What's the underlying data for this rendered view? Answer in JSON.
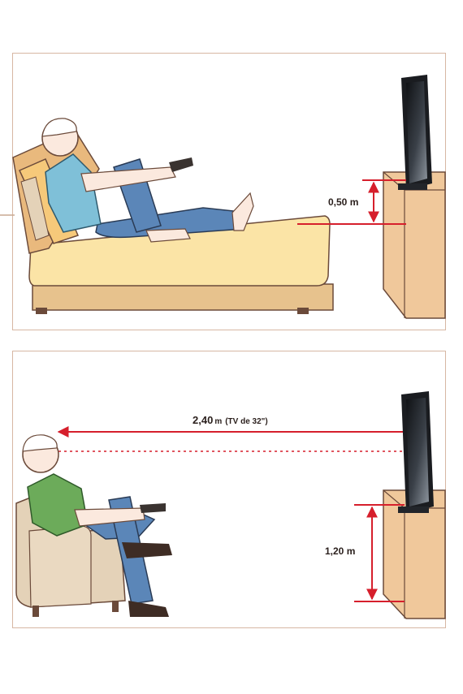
{
  "diagrams": {
    "lying": {
      "height_label": "0,50 m"
    },
    "sitting": {
      "distance_value": "2,40",
      "distance_unit": "m",
      "distance_note": "(TV de 32\")",
      "height_label": "1,20 m"
    }
  },
  "colors": {
    "frame": "#d7b7a3",
    "dimension": "#d61f2c",
    "cabinet": "#f0c89b",
    "mattress": "#fbe4a6",
    "bed_base": "#e7c28d",
    "shirt_blue": "#7fc0d8",
    "shirt_green": "#6cab5a",
    "jeans": "#5b86b8",
    "armchair": "#e4d2b8",
    "skin": "#fbe9de"
  }
}
